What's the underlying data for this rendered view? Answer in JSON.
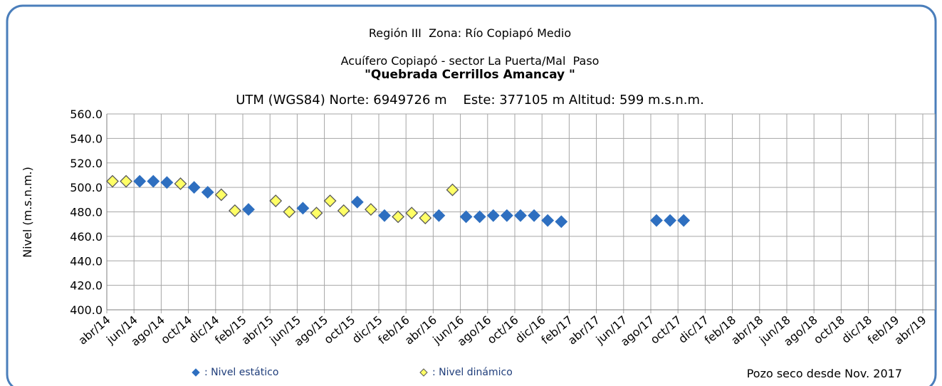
{
  "chart_data": {
    "type": "scatter",
    "title": "Región III  Zona: Río Copiapó Medio",
    "subtitle": "Acuífero Copiapó - sector La Puerta/Mal  Paso",
    "well_name": "\"Quebrada Cerrillos Amancay \"",
    "location": "UTM (WGS84) Norte: 6949726 m    Este: 377105 m Altitud: 599 m.s.n.m.",
    "ylabel": "Nivel (m.s.n.m.)",
    "annotation": "Pozo seco desde Nov. 2017",
    "categories": [
      "abr/14",
      null,
      "jun/14",
      null,
      "ago/14",
      null,
      "oct/14",
      null,
      "dic/14",
      null,
      "feb/15",
      null,
      "abr/15",
      null,
      "jun/15",
      null,
      "ago/15",
      null,
      "oct/15",
      null,
      "dic/15",
      null,
      "feb/16",
      null,
      "abr/16",
      null,
      "jun/16",
      null,
      "ago/16",
      null,
      "oct/16",
      null,
      "dic/16",
      null,
      "feb/17",
      null,
      "abr/17",
      null,
      "jun/17",
      null,
      "ago/17",
      null,
      "oct/17",
      null,
      "dic/17",
      null,
      "feb/18",
      null,
      "abr/18",
      null,
      "jun/18",
      null,
      "ago/18",
      null,
      "oct/18",
      null,
      "dic/18",
      null,
      "feb/19",
      null,
      "abr/19"
    ],
    "series": [
      {
        "name": ": Nivel estático",
        "color": "#2e6fc0",
        "values": [
          null,
          null,
          505,
          505,
          504,
          null,
          500,
          496,
          null,
          null,
          482,
          null,
          null,
          null,
          483,
          null,
          null,
          null,
          488,
          null,
          477,
          null,
          null,
          null,
          477,
          null,
          476,
          476,
          477,
          477,
          477,
          477,
          473,
          472,
          null,
          null,
          null,
          null,
          null,
          null,
          473,
          473,
          473,
          null,
          null,
          null,
          null,
          null,
          null,
          null,
          null,
          null,
          null,
          null,
          null,
          null,
          null,
          null,
          null,
          null,
          null
        ]
      },
      {
        "name": ": Nivel dinámico",
        "color": "#ffff66",
        "values": [
          505,
          505,
          null,
          null,
          null,
          503,
          null,
          null,
          494,
          481,
          null,
          null,
          489,
          480,
          null,
          479,
          489,
          481,
          null,
          482,
          null,
          476,
          479,
          475,
          null,
          498,
          null,
          null,
          null,
          null,
          null,
          null,
          null,
          null,
          null,
          null,
          null,
          null,
          null,
          null,
          null,
          null,
          null,
          null,
          null,
          null,
          null,
          null,
          null,
          null,
          null,
          null,
          null,
          null,
          null,
          null,
          null,
          null,
          null,
          null,
          null
        ]
      }
    ],
    "ylim": [
      400,
      560
    ],
    "yticks": [
      {
        "value": 400,
        "label": "400.0"
      },
      {
        "value": 420,
        "label": "420.0"
      },
      {
        "value": 440,
        "label": "440.0"
      },
      {
        "value": 460,
        "label": "460.0"
      },
      {
        "value": 480,
        "label": "480.0"
      },
      {
        "value": 500,
        "label": "500.0"
      },
      {
        "value": 520,
        "label": "520.0"
      },
      {
        "value": 540,
        "label": "540.0"
      },
      {
        "value": 560,
        "label": "560.0"
      }
    ],
    "grid": true
  }
}
